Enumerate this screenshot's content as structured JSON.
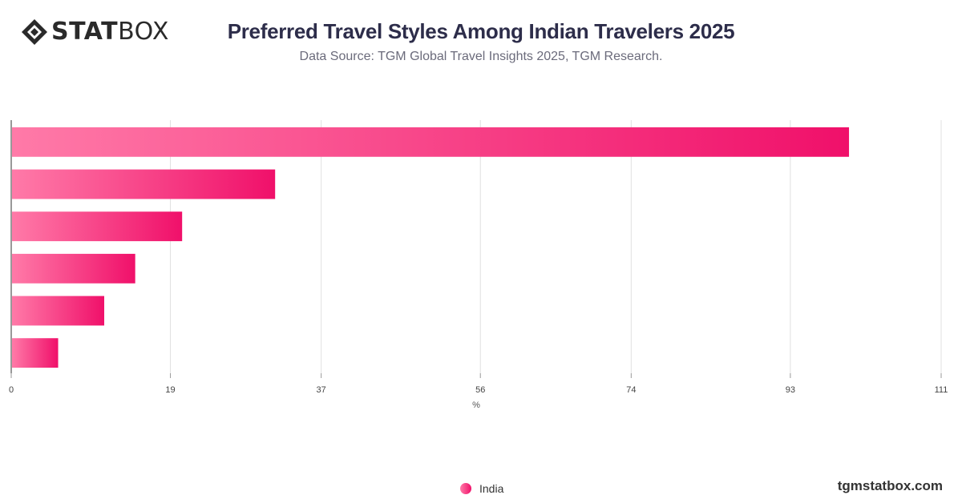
{
  "brand": {
    "logo_bold": "STAT",
    "logo_light": "BOX",
    "url": "tgmstatbox.com"
  },
  "header": {
    "title": "Preferred Travel Styles Among Indian Travelers 2025",
    "subtitle": "Data Source: TGM Global Travel Insights 2025, TGM Research."
  },
  "colors": {
    "bar_start": "#ff7aa8",
    "bar_end": "#f0106a",
    "title": "#2d2d4a",
    "grid": "#e0e0e0"
  },
  "chart_data": {
    "type": "bar",
    "orientation": "horizontal",
    "title": "Preferred Travel Styles Among Indian Travelers 2025",
    "xlabel": "%",
    "ylabel": "",
    "x_ticks": [
      "0",
      "19",
      "37",
      "56",
      "74",
      "93",
      "111"
    ],
    "xlim": [
      0,
      111
    ],
    "grid": true,
    "legend_position": "bottom-center",
    "series": [
      {
        "name": "India",
        "values": [
          100,
          31.5,
          20.4,
          14.8,
          11.1,
          5.6
        ]
      }
    ]
  },
  "legend": {
    "items": [
      {
        "label": "India"
      }
    ]
  }
}
